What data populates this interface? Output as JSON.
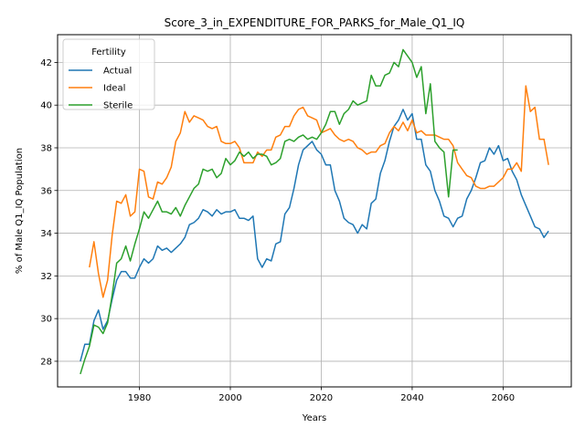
{
  "chart_data": {
    "type": "line",
    "title": "Score_3_in_EXPENDITURE_FOR_PARKS_for_Male_Q1_IQ",
    "xlabel": "Years",
    "ylabel": "% of Male Q1_IQ Population",
    "xlim": [
      1962,
      2075
    ],
    "ylim": [
      26.8,
      43.3
    ],
    "xticks": [
      1980,
      2000,
      2020,
      2040,
      2060
    ],
    "yticks": [
      28,
      30,
      32,
      34,
      36,
      38,
      40,
      42
    ],
    "grid": true,
    "legend": {
      "title": "Fertility",
      "placement": "top-left"
    },
    "series": [
      {
        "name": "Actual",
        "color": "#1f77b4",
        "x": [
          1967,
          1968,
          1969,
          1970,
          1971,
          1972,
          1973,
          1974,
          1975,
          1976,
          1977,
          1978,
          1979,
          1980,
          1981,
          1982,
          1983,
          1984,
          1985,
          1986,
          1987,
          1988,
          1989,
          1990,
          1991,
          1992,
          1993,
          1994,
          1995,
          1996,
          1997,
          1998,
          1999,
          2000,
          2001,
          2002,
          2003,
          2004,
          2005,
          2006,
          2007,
          2008,
          2009,
          2010,
          2011,
          2012,
          2013,
          2014,
          2015,
          2016,
          2017,
          2018,
          2019,
          2020,
          2021,
          2022,
          2023,
          2024,
          2025,
          2026,
          2027,
          2028,
          2029,
          2030,
          2031,
          2032,
          2033,
          2034,
          2035,
          2036,
          2037,
          2038,
          2039,
          2040,
          2041,
          2042,
          2043,
          2044,
          2045,
          2046,
          2047,
          2048,
          2049,
          2050,
          2051,
          2052,
          2053,
          2054,
          2055,
          2056,
          2057,
          2058,
          2059,
          2060,
          2061,
          2062,
          2063,
          2064,
          2065,
          2066,
          2067,
          2068,
          2069,
          2070
        ],
        "values": [
          28.0,
          28.8,
          28.8,
          29.9,
          30.4,
          29.5,
          29.9,
          30.9,
          31.8,
          32.2,
          32.2,
          31.9,
          31.9,
          32.4,
          32.8,
          32.6,
          32.8,
          33.4,
          33.2,
          33.3,
          33.1,
          33.3,
          33.5,
          33.8,
          34.4,
          34.5,
          34.7,
          35.1,
          35.0,
          34.8,
          35.1,
          34.9,
          35.0,
          35.0,
          35.1,
          34.7,
          34.7,
          34.6,
          34.8,
          32.8,
          32.4,
          32.8,
          32.7,
          33.5,
          33.6,
          34.9,
          35.2,
          36.1,
          37.2,
          37.9,
          38.1,
          38.3,
          37.9,
          37.7,
          37.2,
          37.2,
          36.0,
          35.5,
          34.7,
          34.5,
          34.4,
          34.0,
          34.4,
          34.2,
          35.4,
          35.6,
          36.8,
          37.4,
          38.3,
          39.0,
          39.3,
          39.8,
          39.3,
          39.6,
          38.4,
          38.4,
          37.2,
          36.9,
          36.0,
          35.5,
          34.8,
          34.7,
          34.3,
          34.7,
          34.8,
          35.6,
          36.0,
          36.6,
          37.3,
          37.4,
          38.0,
          37.7,
          38.1,
          37.4,
          37.5,
          36.9,
          36.5,
          35.8,
          35.3,
          34.8,
          34.3,
          34.2,
          33.8,
          34.1
        ]
      },
      {
        "name": "Ideal",
        "color": "#ff7f0e",
        "x": [
          1969,
          1970,
          1971,
          1972,
          1973,
          1974,
          1975,
          1976,
          1977,
          1978,
          1979,
          1980,
          1981,
          1982,
          1983,
          1984,
          1985,
          1986,
          1987,
          1988,
          1989,
          1990,
          1991,
          1992,
          1993,
          1994,
          1995,
          1996,
          1997,
          1998,
          1999,
          2000,
          2001,
          2002,
          2003,
          2004,
          2005,
          2006,
          2007,
          2008,
          2009,
          2010,
          2011,
          2012,
          2013,
          2014,
          2015,
          2016,
          2017,
          2018,
          2019,
          2020,
          2021,
          2022,
          2023,
          2024,
          2025,
          2026,
          2027,
          2028,
          2029,
          2030,
          2031,
          2032,
          2033,
          2034,
          2035,
          2036,
          2037,
          2038,
          2039,
          2040,
          2041,
          2042,
          2043,
          2044,
          2045,
          2046,
          2047,
          2048,
          2049,
          2050,
          2051,
          2052,
          2053,
          2054,
          2055,
          2056,
          2057,
          2058,
          2059,
          2060,
          2061,
          2062,
          2063,
          2064,
          2065,
          2066,
          2067,
          2068,
          2069,
          2070
        ],
        "values": [
          32.4,
          33.6,
          32.1,
          31.0,
          31.8,
          33.9,
          35.5,
          35.4,
          35.8,
          34.8,
          35.0,
          37.0,
          36.9,
          35.7,
          35.6,
          36.4,
          36.3,
          36.6,
          37.1,
          38.3,
          38.7,
          39.7,
          39.2,
          39.5,
          39.4,
          39.3,
          39.0,
          38.9,
          39.0,
          38.3,
          38.2,
          38.2,
          38.3,
          38.0,
          37.3,
          37.3,
          37.3,
          37.8,
          37.6,
          37.9,
          37.9,
          38.5,
          38.6,
          39.0,
          39.0,
          39.5,
          39.8,
          39.9,
          39.5,
          39.4,
          39.3,
          38.7,
          38.8,
          38.9,
          38.6,
          38.4,
          38.3,
          38.4,
          38.3,
          38.0,
          37.9,
          37.7,
          37.8,
          37.8,
          38.1,
          38.2,
          38.7,
          39.0,
          38.8,
          39.2,
          38.8,
          39.3,
          38.7,
          38.8,
          38.6,
          38.6,
          38.6,
          38.5,
          38.4,
          38.4,
          38.1,
          37.3,
          37.0,
          36.7,
          36.6,
          36.2,
          36.1,
          36.1,
          36.2,
          36.2,
          36.4,
          36.6,
          37.0,
          37.0,
          37.3,
          36.9,
          40.9,
          39.7,
          39.9,
          38.4,
          38.4,
          37.2
        ]
      },
      {
        "name": "Sterile",
        "color": "#2ca02c",
        "x": [
          1967,
          1968,
          1969,
          1970,
          1971,
          1972,
          1973,
          1974,
          1975,
          1976,
          1977,
          1978,
          1979,
          1980,
          1981,
          1982,
          1983,
          1984,
          1985,
          1986,
          1987,
          1988,
          1989,
          1990,
          1991,
          1992,
          1993,
          1994,
          1995,
          1996,
          1997,
          1998,
          1999,
          2000,
          2001,
          2002,
          2003,
          2004,
          2005,
          2006,
          2007,
          2008,
          2009,
          2010,
          2011,
          2012,
          2013,
          2014,
          2015,
          2016,
          2017,
          2018,
          2019,
          2020,
          2021,
          2022,
          2023,
          2024,
          2025,
          2026,
          2027,
          2028,
          2029,
          2030,
          2031,
          2032,
          2033,
          2034,
          2035,
          2036,
          2037,
          2038,
          2039,
          2040,
          2041,
          2042,
          2043,
          2044,
          2045,
          2046,
          2047,
          2048,
          2049,
          2050
        ],
        "values": [
          27.4,
          28.1,
          28.7,
          29.7,
          29.6,
          29.3,
          29.8,
          31.1,
          32.6,
          32.8,
          33.4,
          32.7,
          33.5,
          34.2,
          35.0,
          34.7,
          35.1,
          35.5,
          35.0,
          35.0,
          34.9,
          35.2,
          34.8,
          35.3,
          35.7,
          36.1,
          36.3,
          37.0,
          36.9,
          37.0,
          36.6,
          36.8,
          37.5,
          37.2,
          37.4,
          37.8,
          37.6,
          37.8,
          37.5,
          37.7,
          37.7,
          37.6,
          37.2,
          37.3,
          37.5,
          38.3,
          38.4,
          38.3,
          38.5,
          38.6,
          38.4,
          38.5,
          38.4,
          38.7,
          39.1,
          39.7,
          39.7,
          39.1,
          39.6,
          39.8,
          40.2,
          40.0,
          40.1,
          40.2,
          41.4,
          40.9,
          40.9,
          41.4,
          41.5,
          42.0,
          41.8,
          42.6,
          42.3,
          42.0,
          41.3,
          41.8,
          39.6,
          41.0,
          38.3,
          38.0,
          37.8,
          35.7,
          37.9,
          37.9
        ]
      }
    ]
  }
}
